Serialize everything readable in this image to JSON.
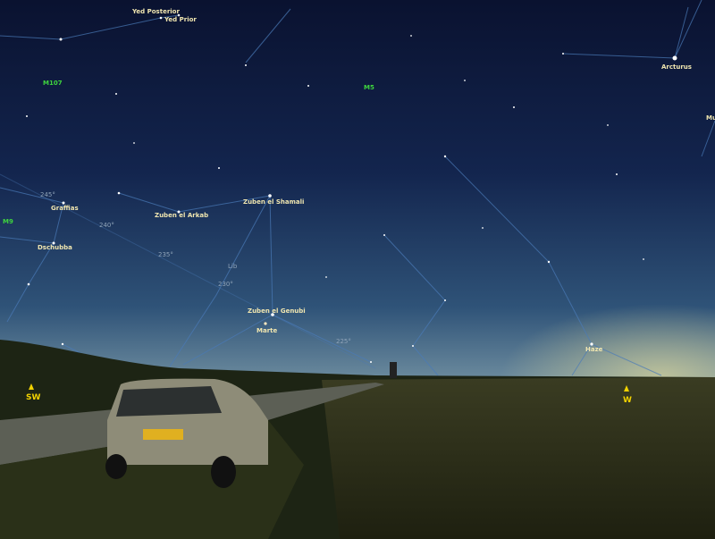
{
  "labels": [
    "Yed Posterior",
    "Yed Prior",
    "M107",
    "M5",
    "Arcturus",
    "Mu",
    "M9",
    "Graffias",
    "Zuben el Arkab",
    "Zuben el Shamali",
    "Dschubba",
    "Lib",
    "Zuben el Genubi",
    "Marte",
    "Haze"
  ],
  "grid_labels": [
    "245°",
    "240°",
    "235°",
    "230°",
    "225°"
  ],
  "compass": [
    "SW",
    "W"
  ]
}
